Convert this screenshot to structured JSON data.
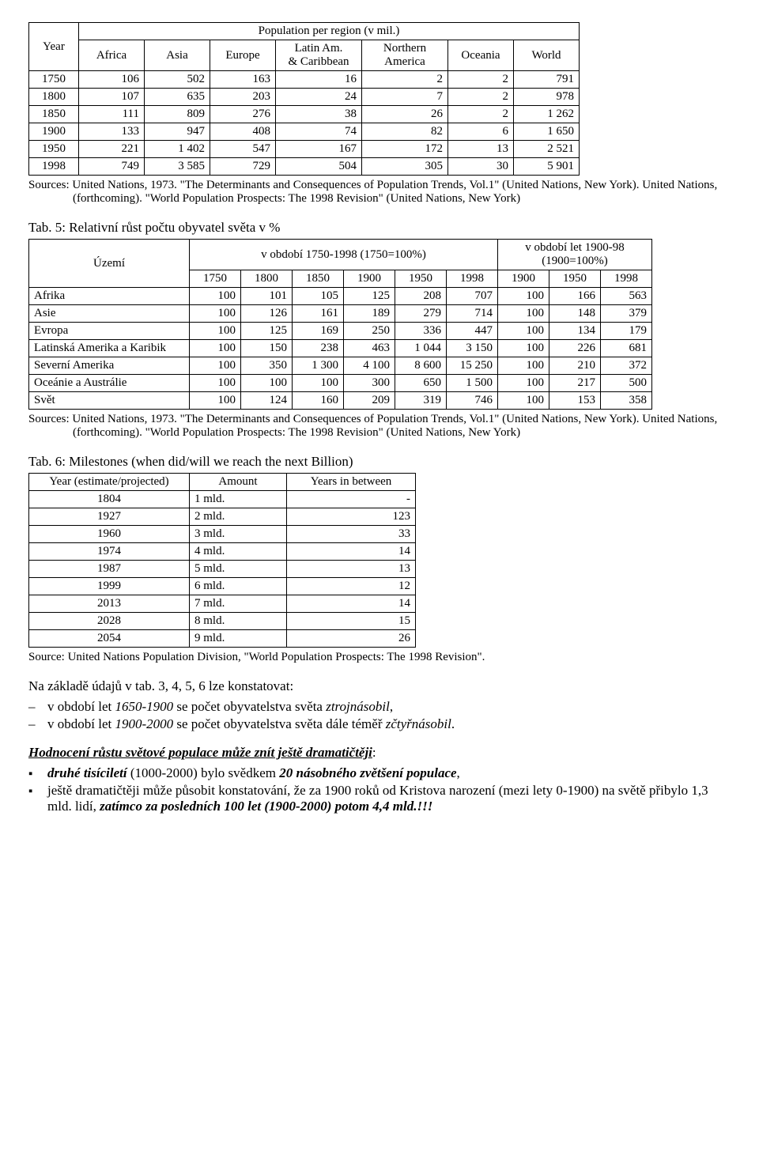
{
  "table4": {
    "header_top": "Population per region (v mil.)",
    "year_label": "Year",
    "columns": [
      "Africa",
      "Asia",
      "Europe",
      "Latin Am.\n& Caribbean",
      "Northern\nAmerica",
      "Oceania",
      "World"
    ],
    "rows": [
      [
        "1750",
        "106",
        "502",
        "163",
        "16",
        "2",
        "2",
        "791"
      ],
      [
        "1800",
        "107",
        "635",
        "203",
        "24",
        "7",
        "2",
        "978"
      ],
      [
        "1850",
        "111",
        "809",
        "276",
        "38",
        "26",
        "2",
        "1 262"
      ],
      [
        "1900",
        "133",
        "947",
        "408",
        "74",
        "82",
        "6",
        "1 650"
      ],
      [
        "1950",
        "221",
        "1 402",
        "547",
        "167",
        "172",
        "13",
        "2 521"
      ],
      [
        "1998",
        "749",
        "3 585",
        "729",
        "504",
        "305",
        "30",
        "5 901"
      ]
    ],
    "sources": "Sources: United Nations, 1973. \"The Determinants and Consequences of Population Trends, Vol.1\" (United Nations, New York). United Nations, (forthcoming). \"World Population Prospects: The 1998 Revision\" (United Nations, New York)"
  },
  "table5": {
    "title": "Tab. 5: Relativní růst počtu obyvatel světa v %",
    "uzemi_label": "Území",
    "period1_label": "v období 1750-1998 (1750=100%)",
    "period2_label": "v období let 1900-98 (1900=100%)",
    "sub_years_p1": [
      "1750",
      "1800",
      "1850",
      "1900",
      "1950",
      "1998"
    ],
    "sub_years_p2": [
      "1900",
      "1950",
      "1998"
    ],
    "rows": [
      {
        "name": "Afrika",
        "p1": [
          "100",
          "101",
          "105",
          "125",
          "208",
          "707"
        ],
        "p2": [
          "100",
          "166",
          "563"
        ]
      },
      {
        "name": "Asie",
        "p1": [
          "100",
          "126",
          "161",
          "189",
          "279",
          "714"
        ],
        "p2": [
          "100",
          "148",
          "379"
        ]
      },
      {
        "name": "Evropa",
        "p1": [
          "100",
          "125",
          "169",
          "250",
          "336",
          "447"
        ],
        "p2": [
          "100",
          "134",
          "179"
        ]
      },
      {
        "name": "Latinská Amerika a Karibik",
        "p1": [
          "100",
          "150",
          "238",
          "463",
          "1 044",
          "3 150"
        ],
        "p2": [
          "100",
          "226",
          "681"
        ]
      },
      {
        "name": "Severní Amerika",
        "p1": [
          "100",
          "350",
          "1 300",
          "4 100",
          "8 600",
          "15 250"
        ],
        "p2": [
          "100",
          "210",
          "372"
        ]
      },
      {
        "name": "Oceánie a Austrálie",
        "p1": [
          "100",
          "100",
          "100",
          "300",
          "650",
          "1 500"
        ],
        "p2": [
          "100",
          "217",
          "500"
        ]
      },
      {
        "name": "Svět",
        "p1": [
          "100",
          "124",
          "160",
          "209",
          "319",
          "746"
        ],
        "p2": [
          "100",
          "153",
          "358"
        ],
        "bold": true
      }
    ],
    "sources": "Sources: United Nations, 1973. \"The Determinants and Consequences of Population Trends, Vol.1\" (United Nations, New York). United Nations, (forthcoming). \"World Population Prospects: The 1998 Revision\" (United Nations, New York)"
  },
  "table6": {
    "title": "Tab. 6: Milestones (when did/will we reach the next Billion)",
    "columns": [
      "Year (estimate/projected)",
      "Amount",
      "Years in between"
    ],
    "rows": [
      [
        "1804",
        "1 mld.",
        "-"
      ],
      [
        "1927",
        "2 mld.",
        "123"
      ],
      [
        "1960",
        "3 mld.",
        "33"
      ],
      [
        "1974",
        "4 mld.",
        "14"
      ],
      [
        "1987",
        "5 mld.",
        "13"
      ],
      [
        "1999",
        "6 mld.",
        "12"
      ],
      [
        "2013",
        "7 mld.",
        "14"
      ],
      [
        "2028",
        "8 mld.",
        "15"
      ],
      [
        "2054",
        "9 mld.",
        "26"
      ]
    ],
    "source": "Source: United Nations Population Division, \"World Population Prospects: The 1998 Revision\"."
  },
  "commentary": {
    "intro": "Na základě údajů v tab. 3, 4, 5, 6 lze konstatovat:",
    "bullets_dash": [
      {
        "pre": "v období let ",
        "ital1": "1650-1900",
        "mid": " se počet obyvatelstva světa ",
        "ital2": "ztrojnásobil",
        "post": ","
      },
      {
        "pre": "v období let ",
        "ital1": "1900-2000",
        "mid": " se počet obyvatelstva světa dále téměř ",
        "ital2": "zčtyřnásobil",
        "post": "."
      }
    ],
    "heading": "Hodnocení růstu světové populace může znít ještě dramatičtěji",
    "bullets_sq": [
      {
        "seg1_bi": "druhé tisíciletí",
        "seg2": " (1000-2000) bylo svědkem ",
        "seg3_bi": "20 násobného zvětšení populace",
        "seg4": ","
      },
      {
        "seg1": "ještě dramatičtěji může působit konstatování, že za 1900 roků od Kristova narození (mezi lety 0-1900) na světě přibylo 1,3 mld. lidí, ",
        "seg2_bi": "zatímco za posledních 100 let (1900-2000) potom 4,4 mld.!!!"
      }
    ]
  }
}
